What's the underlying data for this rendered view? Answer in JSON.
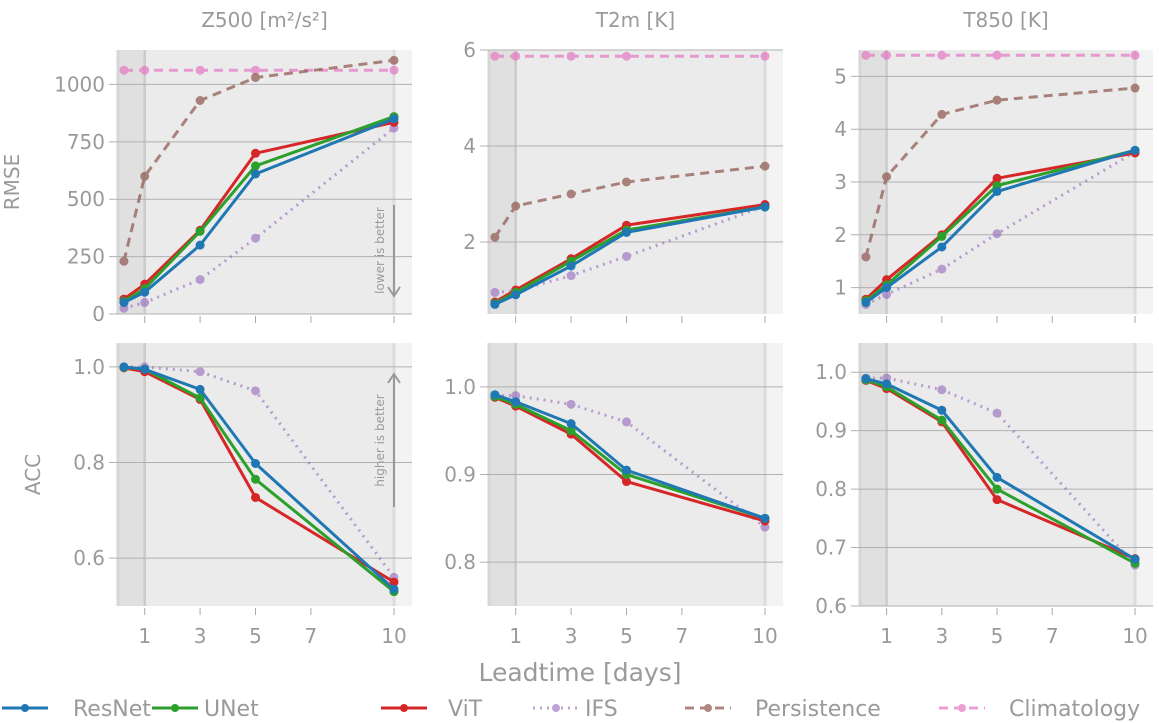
{
  "chart_data": [
    {
      "type": "line",
      "title": "Z500 [m²/s²]",
      "ylabel": "RMSE",
      "xlabel": "",
      "x": [
        0.25,
        1,
        3,
        5,
        10
      ],
      "xlim": [
        0,
        10.65
      ],
      "ylim": [
        0,
        1150
      ],
      "yticks": [
        0,
        250,
        500,
        750,
        1000
      ],
      "ytick_labels": [
        "0",
        "250",
        "500",
        "750",
        "1000"
      ],
      "xticks": [
        1,
        3,
        5,
        7,
        10
      ],
      "xtick_labels": [],
      "annotation": "lower is better",
      "annotation_direction": "down",
      "series": [
        {
          "name": "ResNet",
          "values": [
            50,
            95,
            300,
            610,
            850
          ]
        },
        {
          "name": "UNet",
          "values": [
            55,
            110,
            360,
            645,
            860
          ]
        },
        {
          "name": "ViT",
          "values": [
            65,
            130,
            365,
            700,
            835
          ]
        },
        {
          "name": "IFS",
          "values": [
            25,
            50,
            150,
            330,
            810
          ]
        },
        {
          "name": "Persistence",
          "values": [
            230,
            600,
            930,
            1030,
            1105
          ]
        },
        {
          "name": "Climatology",
          "values": [
            1062,
            1062,
            1062,
            1062,
            1062
          ]
        }
      ]
    },
    {
      "type": "line",
      "title": "T2m [K]",
      "ylabel": "",
      "xlabel": "",
      "x": [
        0.25,
        1,
        3,
        5,
        10
      ],
      "xlim": [
        0,
        10.65
      ],
      "ylim": [
        0.5,
        6
      ],
      "yticks": [
        2,
        4,
        6
      ],
      "ytick_labels": [
        "2",
        "4",
        "6"
      ],
      "xticks": [
        1,
        3,
        5,
        7,
        10
      ],
      "xtick_labels": [],
      "series": [
        {
          "name": "ResNet",
          "values": [
            0.7,
            0.9,
            1.5,
            2.2,
            2.73
          ]
        },
        {
          "name": "UNet",
          "values": [
            0.72,
            0.95,
            1.6,
            2.25,
            2.73
          ]
        },
        {
          "name": "ViT",
          "values": [
            0.75,
            1.0,
            1.65,
            2.35,
            2.78
          ]
        },
        {
          "name": "IFS",
          "values": [
            0.95,
            0.98,
            1.3,
            1.7,
            2.75
          ]
        },
        {
          "name": "Persistence",
          "values": [
            2.1,
            2.75,
            3.0,
            3.25,
            3.58
          ]
        },
        {
          "name": "Climatology",
          "values": [
            5.87,
            5.87,
            5.87,
            5.87,
            5.87
          ]
        }
      ]
    },
    {
      "type": "line",
      "title": "T850 [K]",
      "ylabel": "",
      "xlabel": "",
      "x": [
        0.25,
        1,
        3,
        5,
        10
      ],
      "xlim": [
        0,
        10.65
      ],
      "ylim": [
        0.5,
        5.5
      ],
      "yticks": [
        1,
        2,
        3,
        4,
        5
      ],
      "ytick_labels": [
        "1",
        "2",
        "3",
        "4",
        "5"
      ],
      "xticks": [
        1,
        3,
        5,
        7,
        10
      ],
      "xtick_labels": [],
      "series": [
        {
          "name": "ResNet",
          "values": [
            0.72,
            1.0,
            1.77,
            2.82,
            3.6
          ]
        },
        {
          "name": "UNet",
          "values": [
            0.75,
            1.05,
            1.97,
            2.93,
            3.6
          ]
        },
        {
          "name": "ViT",
          "values": [
            0.78,
            1.15,
            2.0,
            3.07,
            3.55
          ]
        },
        {
          "name": "IFS",
          "values": [
            0.68,
            0.87,
            1.35,
            2.02,
            3.57
          ]
        },
        {
          "name": "Persistence",
          "values": [
            1.58,
            3.1,
            4.28,
            4.55,
            4.78
          ]
        },
        {
          "name": "Climatology",
          "values": [
            5.4,
            5.4,
            5.4,
            5.4,
            5.4
          ]
        }
      ]
    },
    {
      "type": "line",
      "title": "",
      "ylabel": "ACC",
      "xlabel": "",
      "x": [
        0.25,
        1,
        3,
        5,
        10
      ],
      "xlim": [
        0,
        10.65
      ],
      "ylim": [
        0.5,
        1.05
      ],
      "yticks": [
        0.6,
        0.8,
        1.0
      ],
      "ytick_labels": [
        "0.6",
        "0.8",
        "1.0"
      ],
      "xticks": [
        1,
        3,
        5,
        7,
        10
      ],
      "xtick_labels": [
        "1",
        "3",
        "5",
        "7",
        "10"
      ],
      "annotation": "higher is better",
      "annotation_direction": "up",
      "series": [
        {
          "name": "ResNet",
          "values": [
            1.0,
            0.995,
            0.953,
            0.798,
            0.535
          ]
        },
        {
          "name": "UNet",
          "values": [
            0.999,
            0.995,
            0.935,
            0.765,
            0.53
          ]
        },
        {
          "name": "ViT",
          "values": [
            0.998,
            0.99,
            0.932,
            0.727,
            0.55
          ]
        },
        {
          "name": "IFS",
          "values": [
            1.0,
            1.0,
            0.99,
            0.95,
            0.56
          ]
        }
      ]
    },
    {
      "type": "line",
      "title": "",
      "ylabel": "",
      "xlabel": "",
      "x": [
        0.25,
        1,
        3,
        5,
        10
      ],
      "xlim": [
        0,
        10.65
      ],
      "ylim": [
        0.75,
        1.05
      ],
      "yticks": [
        0.8,
        0.9,
        1.0
      ],
      "ytick_labels": [
        "0.8",
        "0.9",
        "1.0"
      ],
      "xticks": [
        1,
        3,
        5,
        7,
        10
      ],
      "xtick_labels": [
        "1",
        "3",
        "5",
        "7",
        "10"
      ],
      "series": [
        {
          "name": "ResNet",
          "values": [
            0.991,
            0.983,
            0.958,
            0.905,
            0.85
          ]
        },
        {
          "name": "UNet",
          "values": [
            0.989,
            0.98,
            0.95,
            0.9,
            0.85
          ]
        },
        {
          "name": "ViT",
          "values": [
            0.988,
            0.978,
            0.946,
            0.892,
            0.847
          ]
        },
        {
          "name": "IFS",
          "values": [
            0.99,
            0.99,
            0.98,
            0.96,
            0.84
          ]
        }
      ]
    },
    {
      "type": "line",
      "title": "",
      "ylabel": "",
      "xlabel": "",
      "x": [
        0.25,
        1,
        3,
        5,
        10
      ],
      "xlim": [
        0,
        10.65
      ],
      "ylim": [
        0.6,
        1.05
      ],
      "yticks": [
        0.6,
        0.7,
        0.8,
        0.9,
        1.0
      ],
      "ytick_labels": [
        "0.6",
        "0.7",
        "0.8",
        "0.9",
        "1.0"
      ],
      "xticks": [
        1,
        3,
        5,
        7,
        10
      ],
      "xtick_labels": [
        "1",
        "3",
        "5",
        "7",
        "10"
      ],
      "series": [
        {
          "name": "ResNet",
          "values": [
            0.989,
            0.98,
            0.935,
            0.82,
            0.68
          ]
        },
        {
          "name": "UNet",
          "values": [
            0.987,
            0.975,
            0.918,
            0.8,
            0.673
          ]
        },
        {
          "name": "ViT",
          "values": [
            0.986,
            0.972,
            0.915,
            0.782,
            0.681
          ]
        },
        {
          "name": "IFS",
          "values": [
            0.99,
            0.99,
            0.97,
            0.93,
            0.67
          ]
        }
      ]
    }
  ],
  "shared_xlabel": "Leadtime [days]",
  "legend": {
    "placement": "bottom",
    "entries": [
      {
        "name": "ResNet",
        "color": "#1f77b4",
        "style": "solid"
      },
      {
        "name": "UNet",
        "color": "#2ca02c",
        "style": "solid"
      },
      {
        "name": "ViT",
        "color": "#d62728",
        "style": "solid"
      },
      {
        "name": "IFS",
        "color": "#9467bd",
        "style": "dotted"
      },
      {
        "name": "Persistence",
        "color": "#8c564b",
        "style": "dashed"
      },
      {
        "name": "Climatology",
        "color": "#e377c2",
        "style": "dashed"
      }
    ]
  },
  "grid": true,
  "shaded_regions": [
    {
      "from": 0,
      "to": 1
    },
    {
      "from": 10,
      "to": 10.65
    }
  ]
}
